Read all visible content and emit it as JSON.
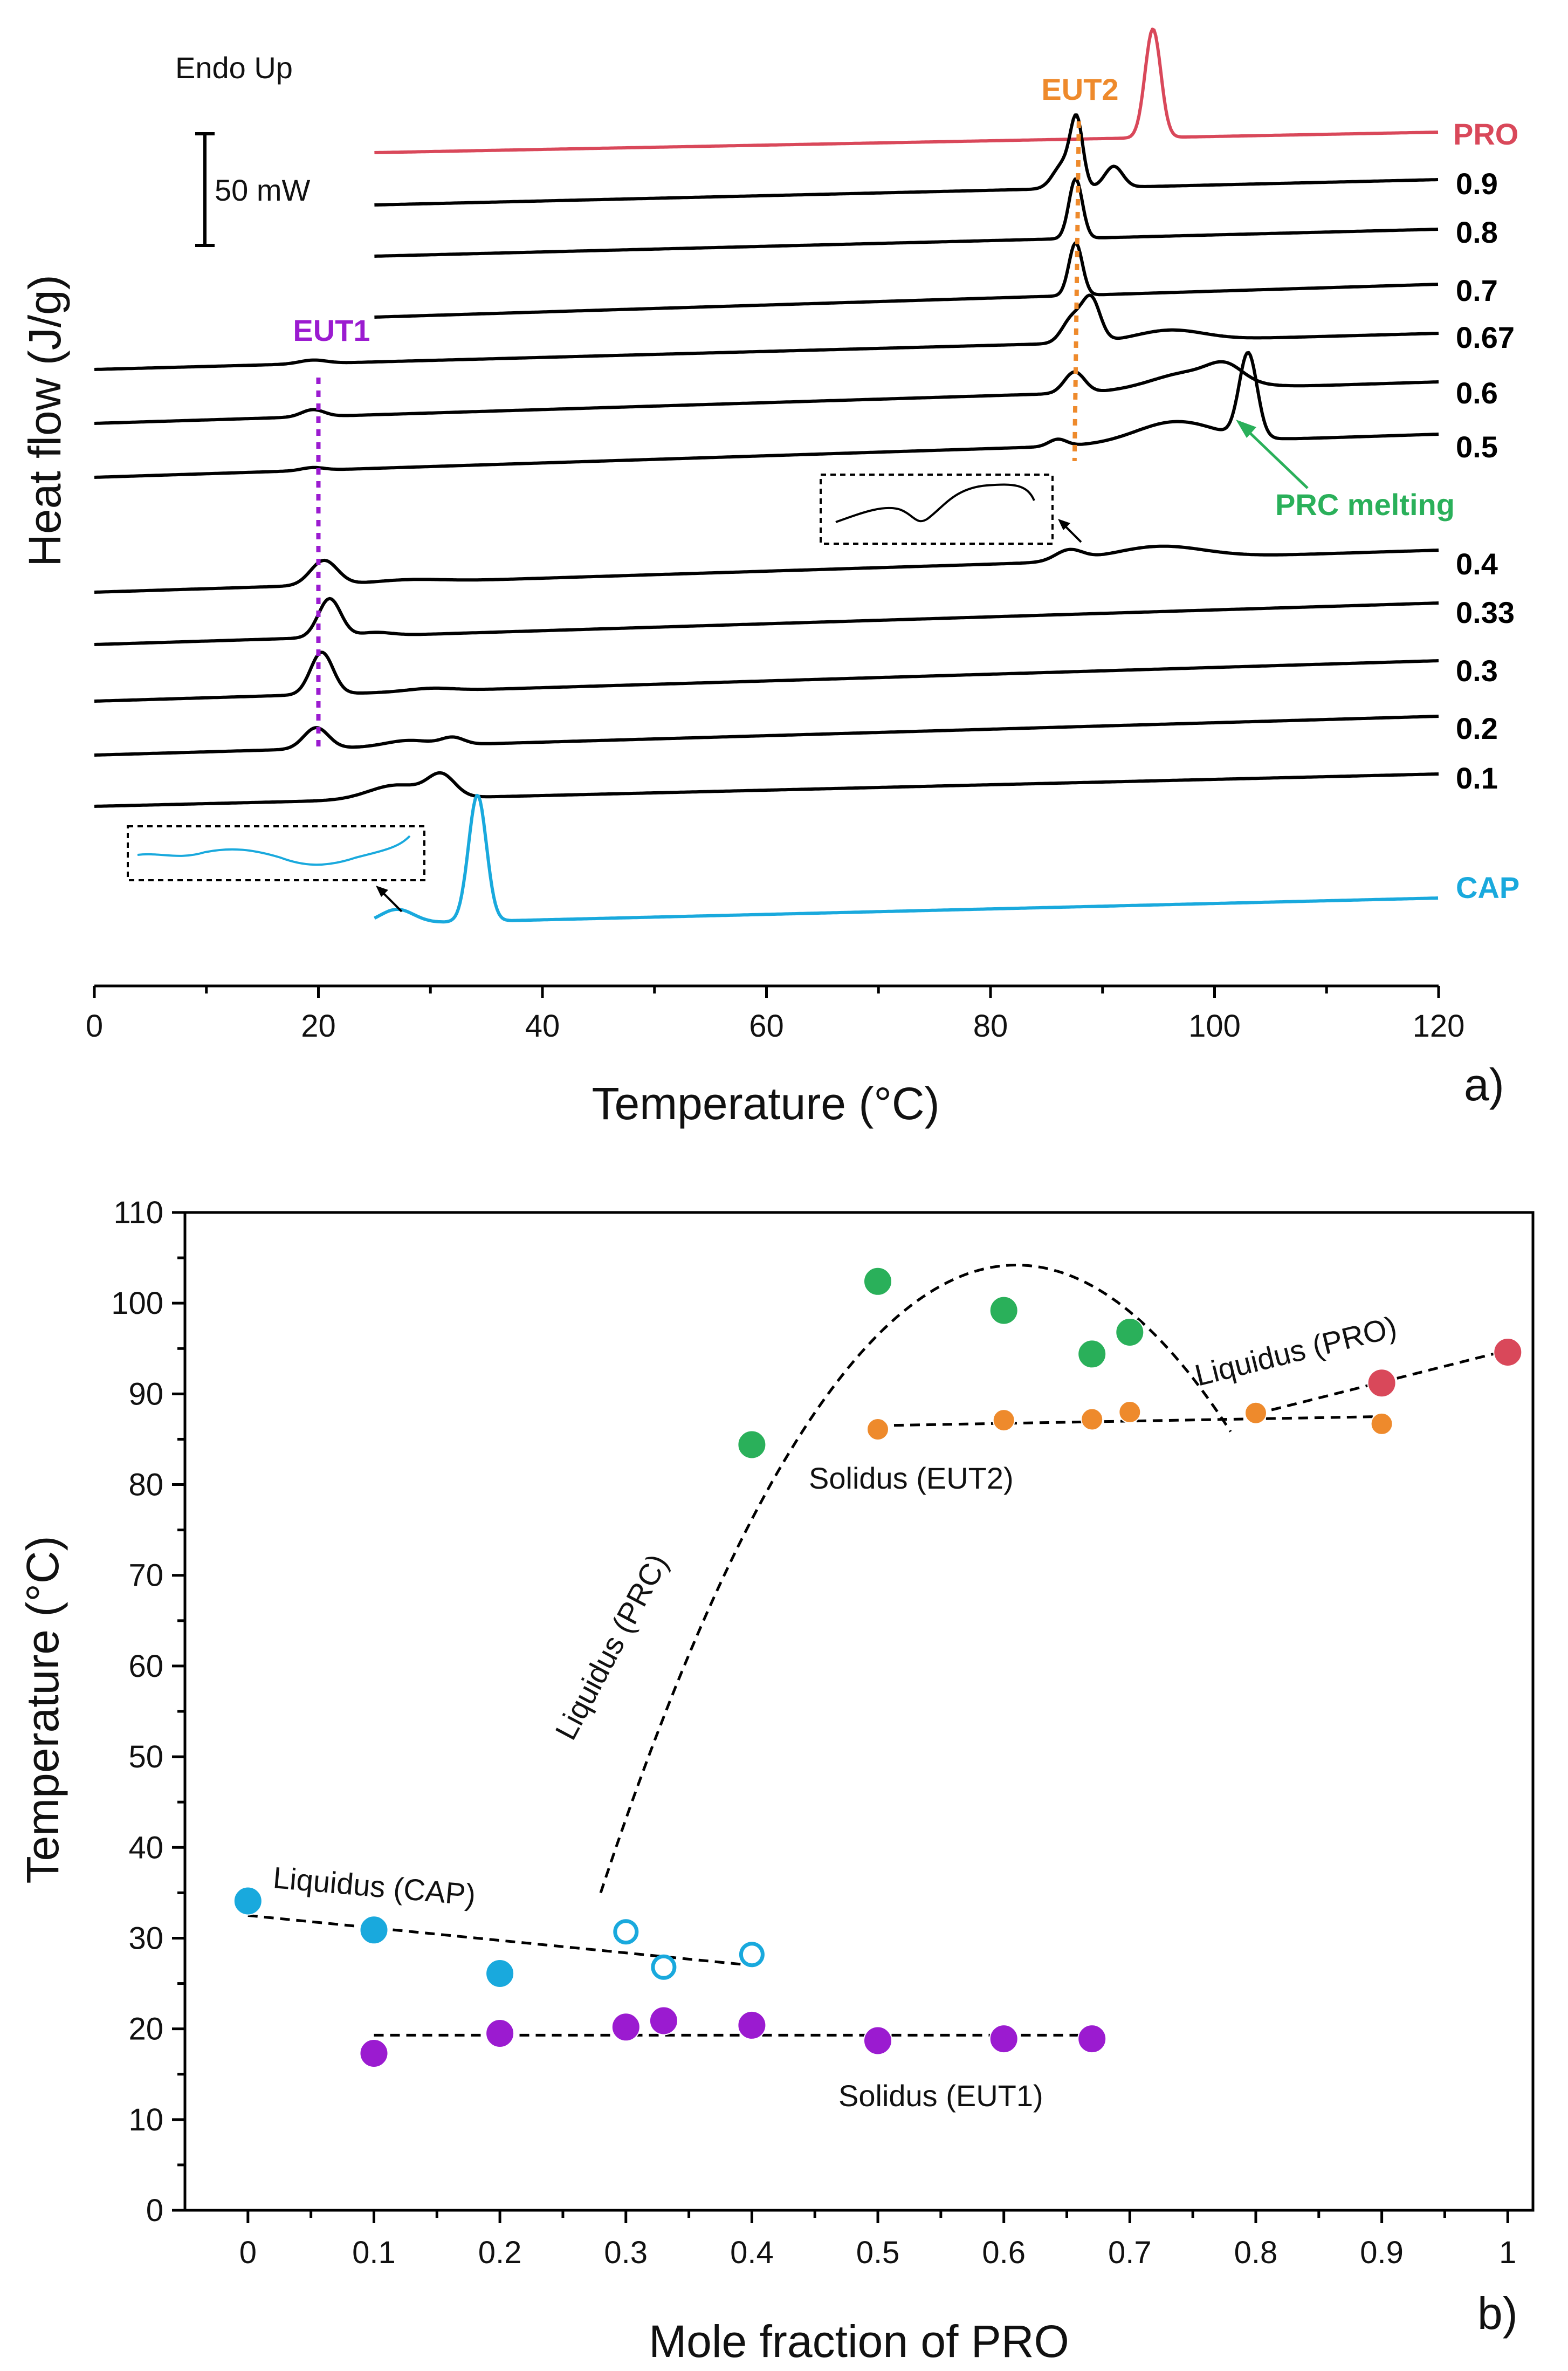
{
  "chart_data": [
    {
      "type": "line",
      "panel_label": "a)",
      "title": "",
      "xlabel": "Temperature  (°C)",
      "ylabel": "Heat flow (J/g)",
      "xlim": [
        0,
        120
      ],
      "xticks": [
        0,
        20,
        40,
        60,
        80,
        100,
        120
      ],
      "annotations": {
        "endo": "Endo Up",
        "scale_bar": "50 mW",
        "eut1": "EUT1",
        "eut2": "EUT2",
        "prc_melting": "PRC melting"
      },
      "eut1_temperature": 20,
      "eut2_temperature": 87.5,
      "colors": {
        "PRO": "#d9485a",
        "CAP": "#19a9dd",
        "mix": "#000000",
        "EUT1": "#9b1bd0",
        "EUT2": "#ee8a2c",
        "PRC": "#2ab05a"
      },
      "series": [
        {
          "name": "PRO",
          "color": "#d9485a",
          "x_start": 25,
          "peaks": [
            {
              "t": 94.5,
              "h": 1.55,
              "w": 0.7
            }
          ]
        },
        {
          "name": "0.9",
          "color": "#000000",
          "x_start": 25,
          "peaks": [
            {
              "t": 86.5,
              "h": 0.35,
              "w": 0.9
            },
            {
              "t": 87.7,
              "h": 0.9,
              "w": 0.55
            },
            {
              "t": 91,
              "h": 0.3,
              "w": 0.8
            }
          ]
        },
        {
          "name": "0.8",
          "color": "#000000",
          "x_start": 25,
          "peaks": [
            {
              "t": 87.6,
              "h": 0.85,
              "w": 0.6
            }
          ]
        },
        {
          "name": "0.7",
          "color": "#000000",
          "x_start": 25,
          "peaks": [
            {
              "t": 87.6,
              "h": 0.75,
              "w": 0.6
            }
          ]
        },
        {
          "name": "0.67",
          "color": "#000000",
          "x_start": 0,
          "peaks": [
            {
              "t": 19.5,
              "h": 0.05,
              "w": 1.2
            },
            {
              "t": 87.3,
              "h": 0.35,
              "w": 0.9
            },
            {
              "t": 89,
              "h": 0.6,
              "w": 0.8
            },
            {
              "t": 96,
              "h": 0.15,
              "w": 3
            }
          ]
        },
        {
          "name": "0.6",
          "color": "#000000",
          "x_start": 0,
          "peaks": [
            {
              "t": 19.5,
              "h": 0.1,
              "w": 1.0
            },
            {
              "t": 87.5,
              "h": 0.3,
              "w": 0.9
            },
            {
              "t": 98,
              "h": 0.25,
              "w": 3.5
            },
            {
              "t": 101,
              "h": 0.2,
              "w": 1.5
            }
          ]
        },
        {
          "name": "0.5",
          "color": "#000000",
          "x_start": 0,
          "peaks": [
            {
              "t": 19.5,
              "h": 0.04,
              "w": 1.0
            },
            {
              "t": 86,
              "h": 0.1,
              "w": 0.8
            },
            {
              "t": 96.5,
              "h": 0.3,
              "w": 3.5
            },
            {
              "t": 103,
              "h": 1.2,
              "w": 0.8
            }
          ]
        },
        {
          "name": "0.4",
          "color": "#000000",
          "x_start": 0,
          "peaks": [
            {
              "t": 20.5,
              "h": 0.35,
              "w": 1.2
            },
            {
              "t": 28,
              "h": 0.04,
              "w": 3
            },
            {
              "t": 87,
              "h": 0.15,
              "w": 1.2
            },
            {
              "t": 95,
              "h": 0.18,
              "w": 4
            }
          ]
        },
        {
          "name": "0.33",
          "color": "#000000",
          "x_start": 0,
          "peaks": [
            {
              "t": 21,
              "h": 0.55,
              "w": 1.0
            },
            {
              "t": 25,
              "h": 0.05,
              "w": 1.5
            }
          ]
        },
        {
          "name": "0.3",
          "color": "#000000",
          "x_start": 0,
          "peaks": [
            {
              "t": 20.3,
              "h": 0.6,
              "w": 1.0
            },
            {
              "t": 30,
              "h": 0.04,
              "w": 2
            }
          ]
        },
        {
          "name": "0.2",
          "color": "#000000",
          "x_start": 0,
          "peaks": [
            {
              "t": 19.8,
              "h": 0.3,
              "w": 1.1
            },
            {
              "t": 28,
              "h": 0.08,
              "w": 2
            },
            {
              "t": 32,
              "h": 0.1,
              "w": 1
            }
          ]
        },
        {
          "name": "0.1",
          "color": "#000000",
          "x_start": 0,
          "peaks": [
            {
              "t": 27,
              "h": 0.2,
              "w": 2.5
            },
            {
              "t": 31,
              "h": 0.3,
              "w": 1.2
            }
          ]
        },
        {
          "name": "CAP",
          "color": "#19a9dd",
          "x_start": 25,
          "peaks": [
            {
              "t": 27,
              "h": 0.2,
              "w": 1.5
            },
            {
              "t": 34.2,
              "h": 1.8,
              "w": 0.8
            }
          ]
        }
      ]
    },
    {
      "type": "scatter",
      "panel_label": "b)",
      "title": "",
      "xlabel": "Mole fraction of PRO",
      "ylabel": "Temperature (°C)",
      "xlim": [
        -0.05,
        1.02
      ],
      "ylim": [
        0,
        110
      ],
      "xticks": [
        0,
        0.1,
        0.2,
        0.3,
        0.4,
        0.5,
        0.6,
        0.7,
        0.8,
        0.9,
        1
      ],
      "xticklabels": [
        "0",
        "0.1",
        "0.2",
        "0.3",
        "0.4",
        "0.5",
        "0.6",
        "0.7",
        "0.8",
        "0.9",
        "1"
      ],
      "yticks": [
        0,
        10,
        20,
        30,
        40,
        50,
        60,
        70,
        80,
        90,
        100,
        110
      ],
      "labels": {
        "liquidus_cap": "Liquidus (CAP)",
        "liquidus_prc": "Liquidus (PRC)",
        "liquidus_pro": "Liquidus (PRO)",
        "solidus_eut1": "Solidus (EUT1)",
        "solidus_eut2": "Solidus (EUT2)"
      },
      "series": [
        {
          "name": "CAP liquidus",
          "color": "#19a9dd",
          "filled": true,
          "x": [
            0,
            0.1,
            0.2
          ],
          "y": [
            34.1,
            30.9,
            26.1
          ]
        },
        {
          "name": "CAP liquidus (open)",
          "color": "#19a9dd",
          "filled": false,
          "x": [
            0.3,
            0.33,
            0.4
          ],
          "y": [
            30.7,
            26.8,
            28.2
          ]
        },
        {
          "name": "EUT1 solidus",
          "color": "#9b1bd0",
          "filled": true,
          "x": [
            0.1,
            0.2,
            0.3,
            0.33,
            0.4,
            0.5,
            0.6,
            0.67
          ],
          "y": [
            17.3,
            19.5,
            20.2,
            20.9,
            20.4,
            18.7,
            18.9,
            18.9
          ]
        },
        {
          "name": "PRC liquidus",
          "color": "#2ab05a",
          "filled": true,
          "x": [
            0.4,
            0.5,
            0.6,
            0.67,
            0.7
          ],
          "y": [
            84.4,
            102.4,
            99.2,
            94.4,
            96.8
          ]
        },
        {
          "name": "EUT2 solidus",
          "color": "#ee8a2c",
          "filled": true,
          "x": [
            0.5,
            0.6,
            0.67,
            0.7,
            0.8,
            0.9
          ],
          "y": [
            86.1,
            87.1,
            87.2,
            88.0,
            87.9,
            86.7
          ]
        },
        {
          "name": "PRO liquidus",
          "color": "#d9485a",
          "filled": true,
          "x": [
            0.9,
            1.0
          ],
          "y": [
            91.2,
            94.6
          ]
        }
      ],
      "fit_lines": [
        {
          "name": "Liquidus (CAP)",
          "x": [
            0,
            0.4
          ],
          "y": [
            32.5,
            27
          ]
        },
        {
          "name": "Solidus (EUT1)",
          "x": [
            0.1,
            0.67
          ],
          "y": [
            19.3,
            19.3
          ]
        },
        {
          "name": "Solidus (EUT2)",
          "x": [
            0.5,
            0.9
          ],
          "y": [
            86.5,
            87.5
          ]
        },
        {
          "name": "Liquidus (PRO)",
          "x": [
            0.8,
            1.0
          ],
          "y": [
            87.8,
            94.8
          ]
        },
        {
          "name": "Liquidus (PRC)",
          "type": "parabola",
          "x_from": 0.28,
          "x_to": 0.78,
          "vertex_x": 0.61,
          "vertex_y": 104.2,
          "y_at_from": 35
        }
      ]
    }
  ]
}
